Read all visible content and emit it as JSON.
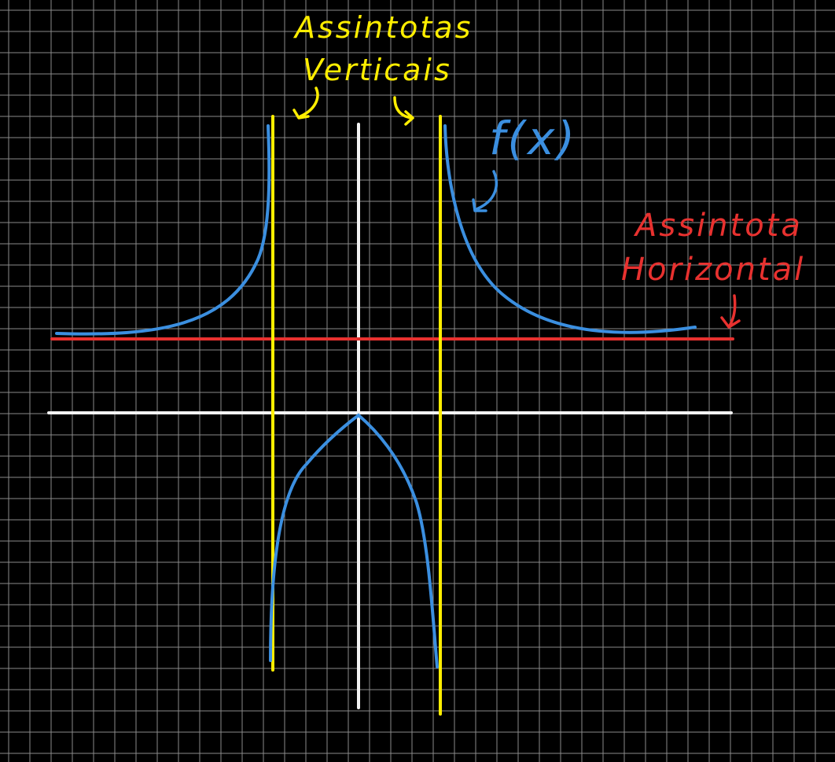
{
  "labels": {
    "vertical_asymptotes_line1": "Assintotas",
    "vertical_asymptotes_line2": "Verticais",
    "function_label": "f(x)",
    "horizontal_asymptote_line1": "Assintota",
    "horizontal_asymptote_line2": "Horizontal"
  },
  "colors": {
    "background": "#000000",
    "grid": "#8a8a8a",
    "axes": "#f2f2f2",
    "vertical_asymptote": "#ffee00",
    "horizontal_asymptote": "#e8312f",
    "curve": "#3b8fe0"
  }
}
